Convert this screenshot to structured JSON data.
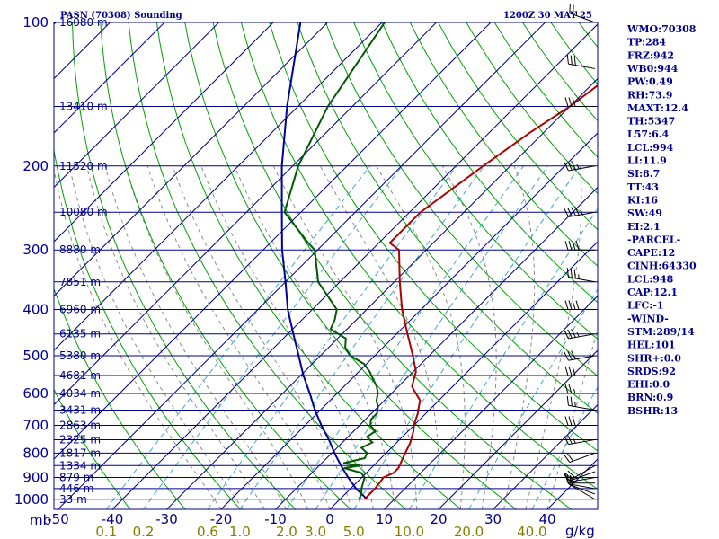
{
  "chart_data": {
    "type": "sounding",
    "title": "PASN (70308) Sounding",
    "date": "1200Z 30 MAY 25",
    "pressure_unit": "mb",
    "mixing_ratio_unit": "g/kg",
    "pressure_levels": [
      100,
      200,
      300,
      400,
      500,
      600,
      700,
      800,
      900,
      1000
    ],
    "temperature_ticks": [
      -50,
      -40,
      -30,
      -20,
      -10,
      0,
      10,
      20,
      30,
      40
    ],
    "mixing_ratio_labels": [
      "0.1",
      "0.2",
      "0.6",
      "1.0",
      "2.0",
      "3.0",
      "5.0",
      "10.0",
      "20.0",
      "40.0"
    ],
    "height_labels": [
      {
        "p": 100,
        "text": "16080 m"
      },
      {
        "p": 150,
        "text": "13410 m"
      },
      {
        "p": 200,
        "text": "11520 m"
      },
      {
        "p": 250,
        "text": "10080 m"
      },
      {
        "p": 300,
        "text": "8880 m"
      },
      {
        "p": 350,
        "text": "7851 m"
      },
      {
        "p": 400,
        "text": "6960 m"
      },
      {
        "p": 450,
        "text": "6135 m"
      },
      {
        "p": 500,
        "text": "5380 m"
      },
      {
        "p": 550,
        "text": "4681 m"
      },
      {
        "p": 600,
        "text": "4034 m"
      },
      {
        "p": 650,
        "text": "3431 m"
      },
      {
        "p": 700,
        "text": "2863 m"
      },
      {
        "p": 750,
        "text": "2325 m"
      },
      {
        "p": 800,
        "text": "1817 m"
      },
      {
        "p": 850,
        "text": "1334 m"
      },
      {
        "p": 900,
        "text": "879 m"
      },
      {
        "p": 950,
        "text": "446 m"
      },
      {
        "p": 1000,
        "text": "33 m"
      }
    ],
    "temperature_profile": [
      {
        "p": 1000,
        "t": 4.5
      },
      {
        "p": 975,
        "t": 4.5
      },
      {
        "p": 950,
        "t": 4.5
      },
      {
        "p": 900,
        "t": 4.0
      },
      {
        "p": 880,
        "t": 5.0
      },
      {
        "p": 860,
        "t": 5.0
      },
      {
        "p": 840,
        "t": 4.5
      },
      {
        "p": 800,
        "t": 3.5
      },
      {
        "p": 760,
        "t": 2.5
      },
      {
        "p": 720,
        "t": 1.0
      },
      {
        "p": 700,
        "t": 0.0
      },
      {
        "p": 660,
        "t": -1.5
      },
      {
        "p": 640,
        "t": -2.5
      },
      {
        "p": 620,
        "t": -3.5
      },
      {
        "p": 600,
        "t": -5.5
      },
      {
        "p": 580,
        "t": -7.5
      },
      {
        "p": 560,
        "t": -8.5
      },
      {
        "p": 540,
        "t": -9.5
      },
      {
        "p": 500,
        "t": -13.0
      },
      {
        "p": 450,
        "t": -18.0
      },
      {
        "p": 400,
        "t": -23.5
      },
      {
        "p": 350,
        "t": -29.0
      },
      {
        "p": 300,
        "t": -35.0
      },
      {
        "p": 290,
        "t": -38.0
      },
      {
        "p": 250,
        "t": -38.0
      },
      {
        "p": 200,
        "t": -35.0
      },
      {
        "p": 170,
        "t": -32.5
      },
      {
        "p": 150,
        "t": -30.0
      },
      {
        "p": 100,
        "t": -25.0
      }
    ],
    "dewpoint_profile": [
      {
        "p": 1000,
        "t": 3.5
      },
      {
        "p": 975,
        "t": 3.0
      },
      {
        "p": 950,
        "t": 2.0
      },
      {
        "p": 900,
        "t": 0.5
      },
      {
        "p": 880,
        "t": -1.0
      },
      {
        "p": 860,
        "t": -5.0
      },
      {
        "p": 850,
        "t": -2.5
      },
      {
        "p": 840,
        "t": -6.0
      },
      {
        "p": 820,
        "t": -3.0
      },
      {
        "p": 800,
        "t": -3.5
      },
      {
        "p": 780,
        "t": -5.5
      },
      {
        "p": 760,
        "t": -4.5
      },
      {
        "p": 740,
        "t": -6.5
      },
      {
        "p": 720,
        "t": -6.0
      },
      {
        "p": 700,
        "t": -8.0
      },
      {
        "p": 680,
        "t": -9.0
      },
      {
        "p": 660,
        "t": -9.0
      },
      {
        "p": 640,
        "t": -10.0
      },
      {
        "p": 620,
        "t": -11.5
      },
      {
        "p": 600,
        "t": -12.5
      },
      {
        "p": 580,
        "t": -14.0
      },
      {
        "p": 560,
        "t": -16.0
      },
      {
        "p": 540,
        "t": -18.0
      },
      {
        "p": 520,
        "t": -20.5
      },
      {
        "p": 500,
        "t": -24.5
      },
      {
        "p": 480,
        "t": -27.0
      },
      {
        "p": 460,
        "t": -28.5
      },
      {
        "p": 440,
        "t": -33.0
      },
      {
        "p": 420,
        "t": -34.0
      },
      {
        "p": 400,
        "t": -35.5
      },
      {
        "p": 350,
        "t": -44.0
      },
      {
        "p": 300,
        "t": -50.5
      },
      {
        "p": 290,
        "t": -53.0
      },
      {
        "p": 250,
        "t": -63.0
      },
      {
        "p": 200,
        "t": -69.0
      },
      {
        "p": 150,
        "t": -74.5
      },
      {
        "p": 100,
        "t": -79.5
      }
    ],
    "parcel_profile": [
      {
        "p": 1000,
        "t": 5.0
      },
      {
        "p": 950,
        "t": 1.0
      },
      {
        "p": 900,
        "t": -2.5
      },
      {
        "p": 850,
        "t": -6.0
      },
      {
        "p": 800,
        "t": -9.5
      },
      {
        "p": 750,
        "t": -13.0
      },
      {
        "p": 700,
        "t": -17.0
      },
      {
        "p": 650,
        "t": -21.0
      },
      {
        "p": 600,
        "t": -25.0
      },
      {
        "p": 550,
        "t": -29.5
      },
      {
        "p": 500,
        "t": -34.0
      },
      {
        "p": 450,
        "t": -39.0
      },
      {
        "p": 400,
        "t": -44.5
      },
      {
        "p": 350,
        "t": -50.0
      },
      {
        "p": 300,
        "t": -56.5
      },
      {
        "p": 250,
        "t": -63.5
      },
      {
        "p": 200,
        "t": -72.0
      },
      {
        "p": 150,
        "t": -82.0
      },
      {
        "p": 100,
        "t": -95.0
      }
    ],
    "wind_barbs": [
      {
        "p": 1000,
        "dir": 300,
        "spd": 10
      },
      {
        "p": 975,
        "dir": 290,
        "spd": 15
      },
      {
        "p": 950,
        "dir": 280,
        "spd": 15
      },
      {
        "p": 925,
        "dir": 270,
        "spd": 15
      },
      {
        "p": 900,
        "dir": 260,
        "spd": 10
      },
      {
        "p": 875,
        "dir": 250,
        "spd": 15
      },
      {
        "p": 850,
        "dir": 240,
        "spd": 20
      },
      {
        "p": 800,
        "dir": 250,
        "spd": 20
      },
      {
        "p": 750,
        "dir": 260,
        "spd": 25
      },
      {
        "p": 700,
        "dir": 270,
        "spd": 30
      },
      {
        "p": 650,
        "dir": 280,
        "spd": 25
      },
      {
        "p": 600,
        "dir": 270,
        "spd": 25
      },
      {
        "p": 550,
        "dir": 270,
        "spd": 30
      },
      {
        "p": 500,
        "dir": 260,
        "spd": 30
      },
      {
        "p": 450,
        "dir": 260,
        "spd": 35
      },
      {
        "p": 400,
        "dir": 270,
        "spd": 40
      },
      {
        "p": 350,
        "dir": 280,
        "spd": 35
      },
      {
        "p": 300,
        "dir": 270,
        "spd": 40
      },
      {
        "p": 250,
        "dir": 260,
        "spd": 45
      },
      {
        "p": 200,
        "dir": 260,
        "spd": 35
      },
      {
        "p": 150,
        "dir": 270,
        "spd": 30
      },
      {
        "p": 125,
        "dir": 280,
        "spd": 30
      },
      {
        "p": 100,
        "dir": 290,
        "spd": 25
      }
    ]
  },
  "indices": [
    "WMO:70308",
    "TP:284",
    "FRZ:942",
    "WB0:944",
    "PW:0.49",
    "RH:73.9",
    "MAXT:12.4",
    "TH:5347",
    "L57:6.4",
    "LCL:994",
    "LI:11.9",
    "SI:8.7",
    "TT:43",
    "KI:16",
    "SW:49",
    "EI:2.1",
    "-PARCEL-",
    "CAPE:12",
    "CINH:64330",
    "LCL:948",
    "CAP:12.1",
    "LFC:-1",
    "-WIND-",
    "STM:289/14",
    "HEL:101",
    "SHR+:0.0",
    "SRDS:92",
    "EHI:0.0",
    "BRN:0.9",
    "BSHR:13"
  ],
  "colors": {
    "frame": "#00008b",
    "isobar": "#00008b",
    "isotherm": "#00008b",
    "dry_adiabat": "#00a000",
    "moist_adiabat": "#8a8a8a",
    "mixing_ratio": "#3fa7d6",
    "temperature": "#b00000",
    "dewpoint": "#005a00",
    "parcel": "#00009c"
  }
}
